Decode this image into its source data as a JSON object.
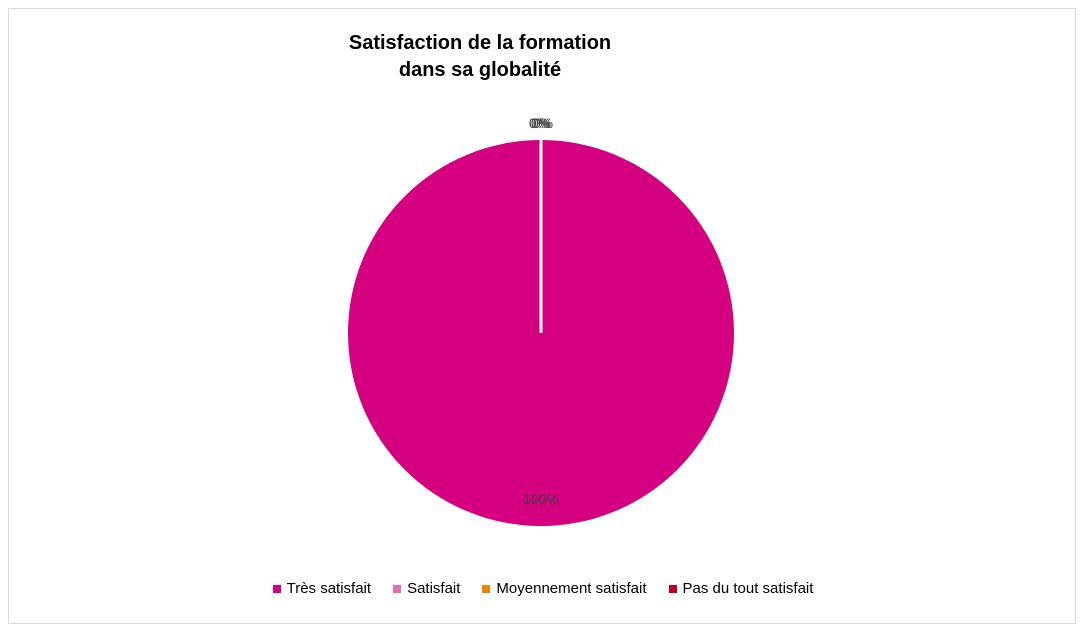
{
  "chart_data": {
    "type": "pie",
    "title": [
      "Satisfaction de la formation",
      "dans sa globalité"
    ],
    "categories": [
      "Très satisfait",
      "Satisfait",
      "Moyennement satisfait",
      "Pas du tout satisfait"
    ],
    "values": [
      100,
      0,
      0,
      0
    ],
    "data_labels": [
      "100%",
      "0%",
      "0%",
      "0%"
    ],
    "colors": [
      "#d5007f",
      "#e070b0",
      "#ef8200",
      "#c00020"
    ],
    "legend": "bottom"
  }
}
